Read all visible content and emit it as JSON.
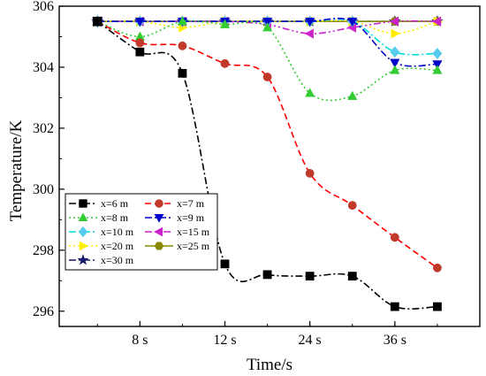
{
  "chart_data": {
    "type": "line",
    "xlabel": "Time/s",
    "ylabel": "Temperature/K",
    "ylim": [
      295.5,
      306
    ],
    "x_index": [
      0,
      1,
      2,
      3,
      4,
      5,
      6,
      7,
      8
    ],
    "x_ticks": [
      {
        "pos": 1,
        "label": "8 s"
      },
      {
        "pos": 3,
        "label": "12 s"
      },
      {
        "pos": 5,
        "label": "24 s"
      },
      {
        "pos": 7,
        "label": "36 s"
      }
    ],
    "y_ticks": [
      296,
      298,
      300,
      302,
      304,
      306
    ],
    "legend_position": "lower-left",
    "series": [
      {
        "name": "x=6 m",
        "color": "#000000",
        "marker": "square",
        "dash": "8,3,2,3",
        "values": [
          305.5,
          304.5,
          303.8,
          297.55,
          297.2,
          297.15,
          297.15,
          296.15,
          296.15
        ]
      },
      {
        "name": "x=7 m",
        "color": "#c0392b",
        "line_color": "#ff0000",
        "marker": "circle",
        "dash": "7,4",
        "values": [
          305.5,
          304.8,
          304.7,
          304.12,
          303.68,
          300.52,
          299.47,
          298.42,
          297.42
        ]
      },
      {
        "name": "x=8 m",
        "color": "#33cc33",
        "marker": "triangle-up",
        "dash": "2,3",
        "values": [
          305.5,
          305.0,
          305.5,
          305.4,
          305.3,
          303.15,
          303.05,
          303.9,
          303.9
        ]
      },
      {
        "name": "x=9 m",
        "color": "#0000cc",
        "marker": "triangle-down",
        "dash": "8,3,2,3",
        "values": [
          305.5,
          305.5,
          305.5,
          305.5,
          305.5,
          305.5,
          305.5,
          304.15,
          304.1
        ]
      },
      {
        "name": "x=10 m",
        "color": "#55ccee",
        "line_color": "#00dddd",
        "marker": "diamond",
        "dash": "8,3,2,3",
        "values": [
          305.5,
          305.5,
          305.5,
          305.5,
          305.5,
          305.5,
          305.5,
          304.5,
          304.45
        ]
      },
      {
        "name": "x=15 m",
        "color": "#cc22cc",
        "marker": "triangle-left",
        "dash": "8,3,2,3,2,3",
        "values": [
          305.5,
          305.5,
          305.5,
          305.5,
          305.4,
          305.1,
          305.3,
          305.5,
          305.5
        ]
      },
      {
        "name": "x=20 m",
        "color": "#ffee00",
        "marker": "triangle-right",
        "dash": "2,3",
        "values": [
          305.5,
          305.5,
          305.3,
          305.5,
          305.5,
          305.5,
          305.5,
          305.1,
          305.5
        ]
      },
      {
        "name": "x=25 m",
        "color": "#888800",
        "marker": "hexagon",
        "dash": "",
        "values": [
          305.5,
          305.5,
          305.5,
          305.5,
          305.5,
          305.5,
          305.5,
          305.5,
          305.5
        ]
      },
      {
        "name": "x=30 m",
        "color": "#1a1a6e",
        "marker": "star",
        "dash": "8,3,2,3",
        "values": [
          305.5,
          305.5,
          305.5,
          305.5,
          305.5,
          305.5,
          305.5,
          305.5,
          305.5
        ]
      }
    ]
  }
}
